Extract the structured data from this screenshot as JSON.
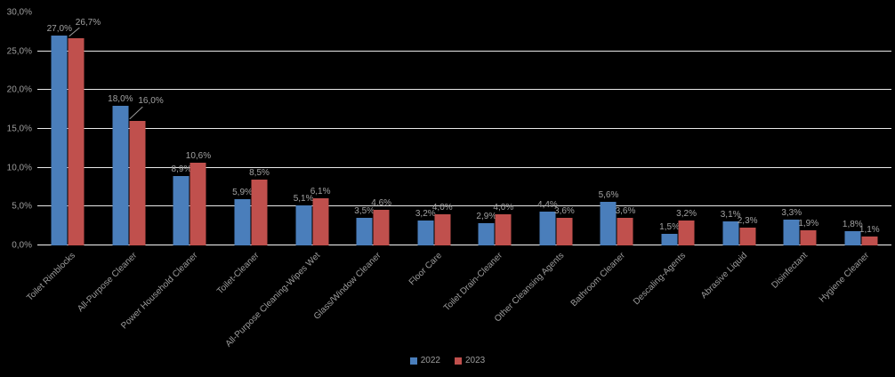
{
  "chart_data": {
    "type": "bar",
    "title": "",
    "xlabel": "",
    "ylabel": "",
    "ylim": [
      0,
      30
    ],
    "grid": true,
    "legend_position": "bottom",
    "background_color": "#000000",
    "gridline_color": "#e9e9e9",
    "text_color": "#9d9d9d",
    "y_ticks": [
      "30,0%",
      "25,0%",
      "20,0%",
      "15,0%",
      "10,0%",
      "5,0%",
      "0,0%"
    ],
    "y_tick_values": [
      30,
      25,
      20,
      15,
      10,
      5,
      0
    ],
    "categories": [
      "Toilet Rimblocks",
      "All-Purpose Cleaner",
      "Power Household Cleaner",
      "Toilet-Cleaner",
      "All-Purpose Cleaning-Wipes Wet",
      "Glass/Window Cleaner",
      "Floor Care",
      "Toilet Drain-Cleaner",
      "Other Cleansing Agents",
      "Bathroom Cleaner",
      "Descaling-Agents",
      "Abrasive Liquid",
      "Disinfectant",
      "Hygiene Cleaner"
    ],
    "series": [
      {
        "name": "2022",
        "color": "#4A7EBB",
        "values": [
          27.0,
          18.0,
          8.9,
          5.9,
          5.1,
          3.5,
          3.2,
          2.9,
          4.4,
          5.6,
          1.5,
          3.1,
          3.3,
          1.8
        ],
        "labels": [
          "27,0%",
          "18,0%",
          "8,9%",
          "5,9%",
          "5,1%",
          "3,5%",
          "3,2%",
          "2,9%",
          "4,4%",
          "5,6%",
          "1,5%",
          "3,1%",
          "3,3%",
          "1,8%"
        ]
      },
      {
        "name": "2023",
        "color": "#C0504D",
        "values": [
          26.7,
          16.0,
          10.6,
          8.5,
          6.1,
          4.6,
          4.0,
          4.0,
          3.6,
          3.6,
          3.2,
          2.3,
          1.9,
          1.1
        ],
        "labels": [
          "26,7%",
          "16,0%",
          "10,6%",
          "8,5%",
          "6,1%",
          "4,6%",
          "4,0%",
          "4,0%",
          "3,6%",
          "3,6%",
          "3,2%",
          "2,3%",
          "1,9%",
          "1,1%"
        ]
      }
    ],
    "callouts": [
      {
        "series": 1,
        "point": 0,
        "style": "short"
      },
      {
        "series": 1,
        "point": 1,
        "style": "long"
      }
    ]
  }
}
